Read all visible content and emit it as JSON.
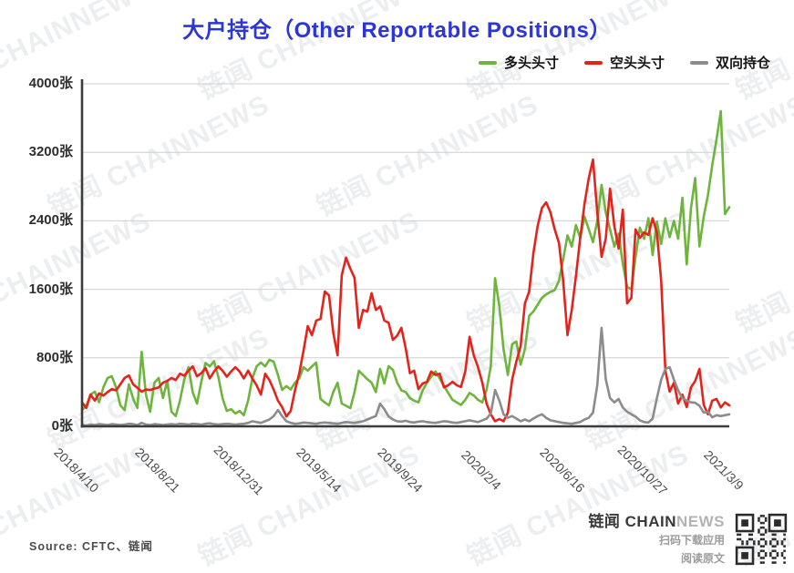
{
  "title": "大户持仓（Other Reportable Positions）",
  "legend": {
    "items": [
      {
        "label": "多头头寸"
      },
      {
        "label": "空头头寸"
      },
      {
        "label": "双向持仓"
      }
    ]
  },
  "y_axis": {
    "unit": "张",
    "ticks": [
      {
        "value": 4000,
        "label": "4000张"
      },
      {
        "value": 3200,
        "label": "3200张"
      },
      {
        "value": 2400,
        "label": "2400张"
      },
      {
        "value": 1600,
        "label": "1600张"
      },
      {
        "value": 800,
        "label": "800张"
      },
      {
        "value": 0,
        "label": "0张"
      }
    ]
  },
  "x_axis": {
    "ticks": [
      {
        "index": 0,
        "label": "2018/4/10"
      },
      {
        "index": 19,
        "label": "2018/8/21"
      },
      {
        "index": 38,
        "label": "2018/12/31"
      },
      {
        "index": 57,
        "label": "2019/5/14"
      },
      {
        "index": 76,
        "label": "2019/9/24"
      },
      {
        "index": 95,
        "label": "2020/2/4"
      },
      {
        "index": 114,
        "label": "2020/6/16"
      },
      {
        "index": 133,
        "label": "2020/10/27"
      },
      {
        "index": 152,
        "label": "2021/3/9"
      }
    ]
  },
  "source": "Source: CFTC、链闻",
  "watermark": {
    "text": "链闻 CHAINNEWS"
  },
  "footer": {
    "logo_primary": "链闻 CHAIN",
    "logo_secondary": "NEWS",
    "caption_line1": "扫码下载应用",
    "caption_line2": "阅读原文"
  },
  "chart_data": {
    "type": "line",
    "title": "大户持仓（Other Reportable Positions）",
    "x_unit": "week",
    "x_start": "2018/4/10",
    "x_end": "2021/3/9",
    "y_unit": "张",
    "ylim": [
      0,
      4000
    ],
    "grid": true,
    "legend_position": "top-right",
    "colors": {
      "long": "#6eb43d",
      "short": "#e2241d",
      "dual": "#8c8c8c"
    },
    "series": [
      {
        "name": "多头头寸",
        "color": "#6eb43d",
        "values": [
          190,
          240,
          370,
          405,
          280,
          455,
          565,
          585,
          450,
          245,
          190,
          490,
          320,
          215,
          870,
          370,
          170,
          510,
          565,
          330,
          530,
          170,
          120,
          300,
          545,
          690,
          400,
          265,
          520,
          740,
          700,
          760,
          580,
          330,
          180,
          200,
          150,
          180,
          130,
          300,
          560,
          700,
          745,
          700,
          777,
          755,
          600,
          426,
          470,
          430,
          510,
          560,
          690,
          650,
          700,
          745,
          319,
          280,
          245,
          400,
          510,
          266,
          240,
          213,
          400,
          649,
          600,
          550,
          510,
          400,
          670,
          500,
          702,
          660,
          510,
          420,
          400,
          330,
          300,
          280,
          420,
          510,
          580,
          640,
          560,
          470,
          390,
          310,
          280,
          250,
          310,
          390,
          360,
          310,
          280,
          430,
          700,
          1730,
          1400,
          900,
          600,
          960,
          990,
          720,
          900,
          1290,
          1340,
          1420,
          1500,
          1540,
          1570,
          1590,
          1700,
          1950,
          2230,
          2100,
          2350,
          2200,
          2450,
          2300,
          2150,
          2400,
          2820,
          2500,
          2300,
          2100,
          2250,
          1900,
          1630,
          1600,
          1980,
          2320,
          2190,
          2430,
          2000,
          2390,
          2130,
          2430,
          2210,
          2400,
          2190,
          2670,
          1890,
          2550,
          2900,
          2100,
          2450,
          2700,
          3050,
          3350,
          3680,
          2480,
          2560
        ]
      },
      {
        "name": "空头头寸",
        "color": "#e2241d",
        "values": [
          280,
          215,
          370,
          300,
          385,
          360,
          400,
          435,
          420,
          490,
          565,
          595,
          490,
          450,
          405,
          430,
          425,
          440,
          455,
          510,
          530,
          565,
          540,
          615,
          590,
          650,
          700,
          585,
          620,
          680,
          560,
          640,
          700,
          650,
          580,
          640,
          690,
          640,
          560,
          650,
          560,
          480,
          370,
          615,
          540,
          430,
          300,
          225,
          115,
          180,
          420,
          615,
          880,
          1170,
          1065,
          1235,
          1255,
          1575,
          1530,
          1095,
          830,
          1765,
          1970,
          1840,
          1735,
          1150,
          1360,
          1340,
          1555,
          1360,
          1400,
          1235,
          1210,
          1010,
          1060,
          1150,
          915,
          620,
          650,
          435,
          500,
          520,
          640,
          600,
          615,
          455,
          480,
          520,
          480,
          460,
          640,
          1045,
          830,
          690,
          510,
          265,
          140,
          60,
          85,
          60,
          160,
          545,
          755,
          935,
          1435,
          1575,
          2020,
          2340,
          2550,
          2615,
          2500,
          2300,
          2140,
          1700,
          1065,
          1360,
          1755,
          2200,
          2600,
          2900,
          3115,
          2500,
          1980,
          2190,
          2775,
          2340,
          2075,
          2530,
          1435,
          1500,
          2300,
          2200,
          2265,
          2235,
          2430,
          2265,
          1700,
          650,
          405,
          510,
          265,
          370,
          225,
          455,
          530,
          670,
          250,
          140,
          300,
          320,
          220,
          280,
          245
        ]
      },
      {
        "name": "双向持仓",
        "color": "#8c8c8c",
        "values": [
          15,
          10,
          20,
          15,
          25,
          20,
          15,
          25,
          20,
          15,
          20,
          30,
          25,
          15,
          40,
          20,
          15,
          25,
          20,
          15,
          20,
          25,
          20,
          30,
          25,
          20,
          30,
          25,
          20,
          30,
          35,
          25,
          20,
          25,
          30,
          25,
          20,
          25,
          30,
          40,
          60,
          50,
          40,
          60,
          80,
          120,
          190,
          120,
          60,
          40,
          30,
          35,
          45,
          40,
          35,
          30,
          40,
          45,
          40,
          35,
          30,
          40,
          50,
          45,
          40,
          50,
          60,
          80,
          100,
          120,
          265,
          200,
          115,
          80,
          60,
          55,
          65,
          50,
          45,
          55,
          60,
          50,
          45,
          40,
          50,
          60,
          55,
          45,
          40,
          50,
          60,
          70,
          60,
          50,
          70,
          90,
          150,
          425,
          300,
          140,
          100,
          120,
          90,
          60,
          80,
          60,
          90,
          120,
          140,
          100,
          70,
          60,
          50,
          40,
          35,
          30,
          40,
          50,
          80,
          100,
          160,
          480,
          1150,
          550,
          330,
          280,
          320,
          220,
          170,
          140,
          115,
          70,
          50,
          45,
          90,
          330,
          545,
          670,
          690,
          545,
          420,
          330,
          300,
          280,
          275,
          240,
          160,
          170,
          105,
          130,
          120,
          130,
          140
        ]
      }
    ]
  }
}
